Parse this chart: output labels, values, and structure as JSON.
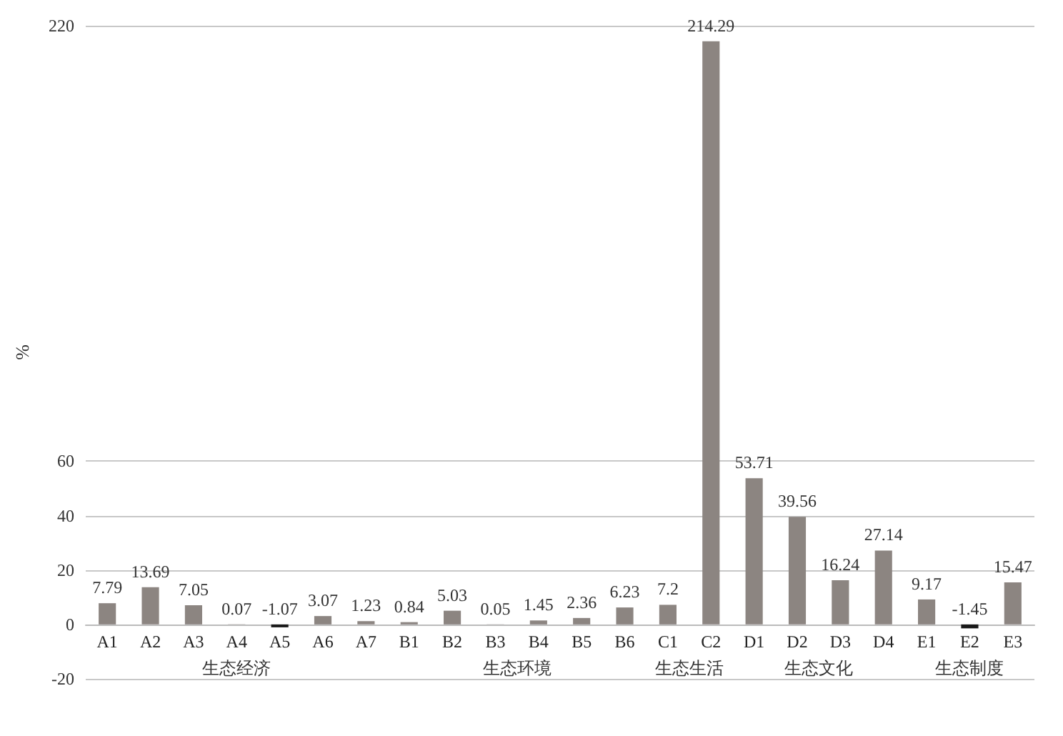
{
  "chart_data": {
    "type": "bar",
    "ylabel": "%",
    "categories": [
      "A1",
      "A2",
      "A3",
      "A4",
      "A5",
      "A6",
      "A7",
      "B1",
      "B2",
      "B3",
      "B4",
      "B5",
      "B6",
      "C1",
      "C2",
      "D1",
      "D2",
      "D3",
      "D4",
      "E1",
      "E2",
      "E3"
    ],
    "values": [
      7.79,
      13.69,
      7.05,
      0.07,
      -1.07,
      3.07,
      1.23,
      0.84,
      5.03,
      0.05,
      1.45,
      2.36,
      6.23,
      7.2,
      214.29,
      53.71,
      39.56,
      16.24,
      27.14,
      9.17,
      -1.45,
      15.47
    ],
    "colors": [
      "#8c8581",
      "#8c8581",
      "#8c8581",
      "#8c8581",
      "#1a1a1a",
      "#8c8581",
      "#8c8581",
      "#8c8581",
      "#8c8581",
      "#8c8581",
      "#8c8581",
      "#8c8581",
      "#8c8581",
      "#8c8581",
      "#8c8581",
      "#8c8581",
      "#8c8581",
      "#8c8581",
      "#8c8581",
      "#8c8581",
      "#1a1a1a",
      "#8c8581"
    ],
    "data_labels": true,
    "ylim": [
      -20,
      220
    ],
    "yticks": [
      -20,
      0,
      20,
      40,
      60,
      220
    ],
    "grid": "y",
    "annotations": [
      "生态经济",
      "生态环境",
      "生态生活",
      "生态文化",
      "生态制度"
    ]
  }
}
